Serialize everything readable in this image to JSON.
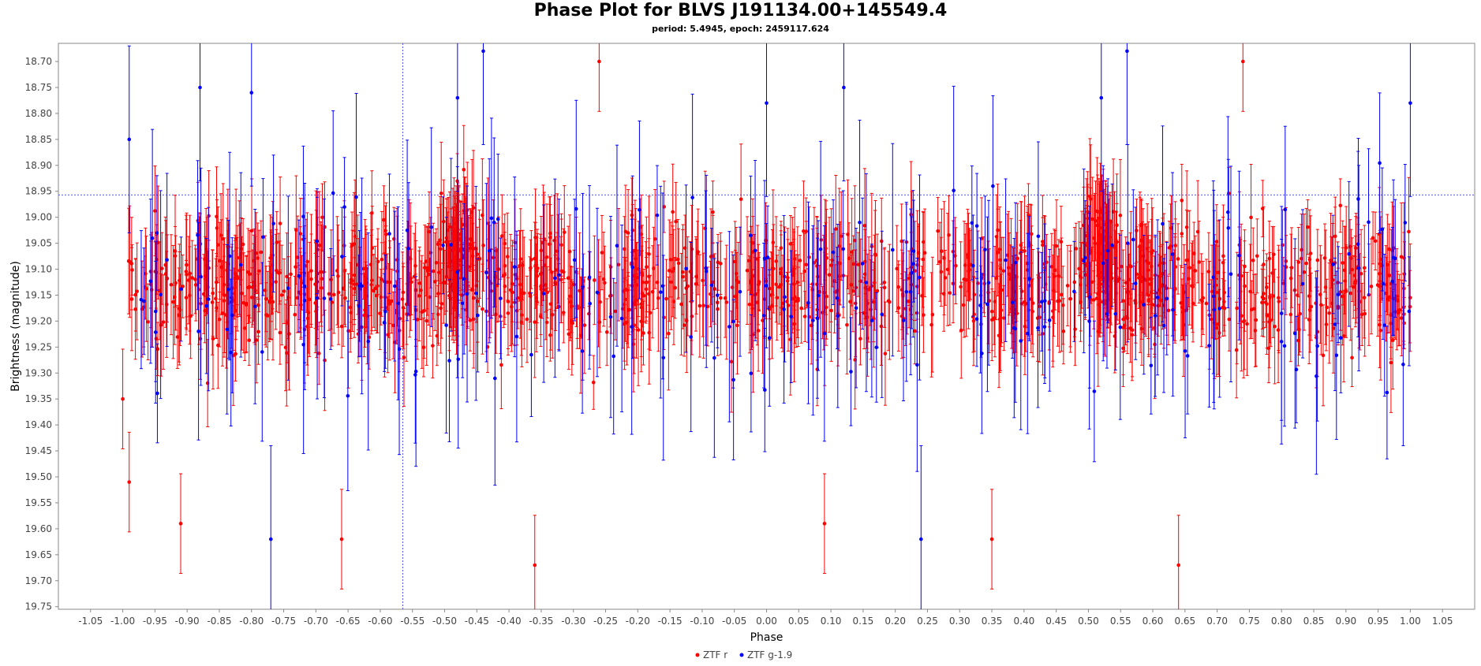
{
  "chart_data": {
    "type": "scatter",
    "title": "Phase Plot for BLVS J191134.00+145549.4",
    "subtitle": "period: 5.4945, epoch: 2459117.624",
    "xlabel": "Phase",
    "ylabel": "Brightness (magnitude)",
    "xlim": [
      -1.1,
      1.1
    ],
    "ylim": [
      18.665,
      19.755
    ],
    "y_inverted": true,
    "x_ticks": [
      "-1.05",
      "-1.00",
      "-0.95",
      "-0.90",
      "-0.85",
      "-0.80",
      "-0.75",
      "-0.70",
      "-0.65",
      "-0.60",
      "-0.55",
      "-0.50",
      "-0.45",
      "-0.40",
      "-0.35",
      "-0.30",
      "-0.25",
      "-0.20",
      "-0.15",
      "-0.10",
      "-0.05",
      "0.00",
      "0.05",
      "0.10",
      "0.15",
      "0.20",
      "0.25",
      "0.30",
      "0.35",
      "0.40",
      "0.45",
      "0.50",
      "0.55",
      "0.60",
      "0.65",
      "0.70",
      "0.75",
      "0.80",
      "0.85",
      "0.90",
      "0.95",
      "1.00",
      "1.05"
    ],
    "y_ticks": [
      "18.70",
      "18.75",
      "18.80",
      "18.85",
      "18.90",
      "18.95",
      "19.00",
      "19.05",
      "19.10",
      "19.15",
      "19.20",
      "19.25",
      "19.30",
      "19.35",
      "19.40",
      "19.45",
      "19.50",
      "19.55",
      "19.60",
      "19.65",
      "19.70",
      "19.75"
    ],
    "reference_lines": {
      "vertical_x": -0.565,
      "horizontal_y": 18.957
    },
    "grid": false,
    "legend_position": "bottom-center",
    "series": [
      {
        "name": "ZTF r",
        "color": "#ff0000",
        "error_bars": true,
        "mean_mag": 19.13,
        "mag_scatter": 0.1,
        "typical_error": 0.08,
        "count": 1400,
        "sample_points": [
          {
            "x": -1.0,
            "y": 19.35
          },
          {
            "x": -0.99,
            "y": 19.51
          },
          {
            "x": -0.91,
            "y": 19.59
          },
          {
            "x": -0.66,
            "y": 19.62
          },
          {
            "x": -0.48,
            "y": 19.05
          },
          {
            "x": -0.36,
            "y": 19.67
          },
          {
            "x": -0.26,
            "y": 18.7
          },
          {
            "x": 0.09,
            "y": 19.59
          },
          {
            "x": 0.35,
            "y": 19.62
          },
          {
            "x": 0.51,
            "y": 19.05
          },
          {
            "x": 0.64,
            "y": 19.67
          },
          {
            "x": 0.74,
            "y": 18.7
          },
          {
            "x": 0.97,
            "y": 19.28
          }
        ]
      },
      {
        "name": "ZTF g-1.9",
        "color": "#0000ff",
        "error_bars": true,
        "mean_mag": 19.15,
        "mag_scatter": 0.18,
        "typical_error": 0.15,
        "count": 240,
        "sample_points": [
          {
            "x": -0.99,
            "y": 18.85
          },
          {
            "x": -0.88,
            "y": 18.75
          },
          {
            "x": -0.8,
            "y": 18.76
          },
          {
            "x": -0.77,
            "y": 19.62
          },
          {
            "x": -0.48,
            "y": 18.77
          },
          {
            "x": -0.44,
            "y": 18.68
          },
          {
            "x": 0.0,
            "y": 18.78
          },
          {
            "x": 0.12,
            "y": 18.75
          },
          {
            "x": 0.24,
            "y": 19.62
          },
          {
            "x": 0.52,
            "y": 18.77
          },
          {
            "x": 0.56,
            "y": 18.68
          },
          {
            "x": 1.0,
            "y": 18.78
          }
        ]
      }
    ]
  }
}
